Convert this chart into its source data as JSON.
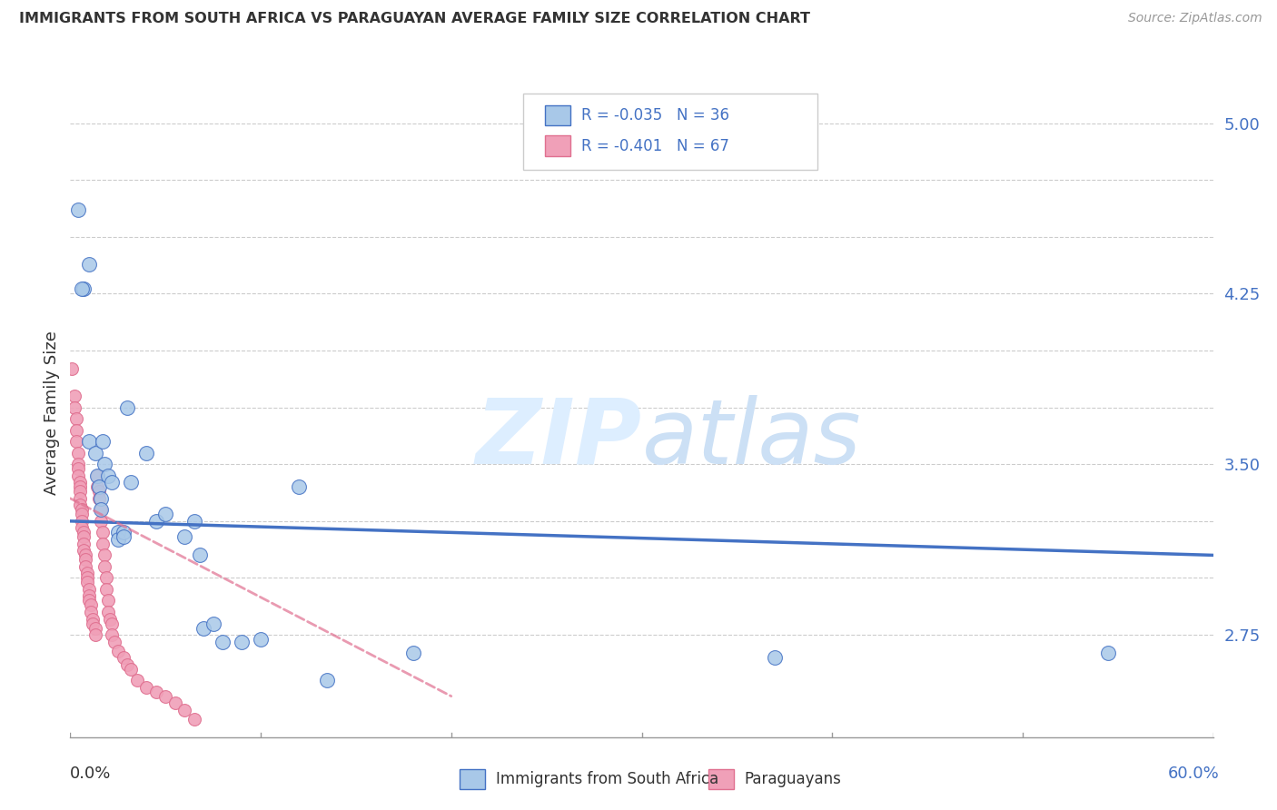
{
  "title": "IMMIGRANTS FROM SOUTH AFRICA VS PARAGUAYAN AVERAGE FAMILY SIZE CORRELATION CHART",
  "source": "Source: ZipAtlas.com",
  "ylabel": "Average Family Size",
  "yticks": [
    2.75,
    3.0,
    3.25,
    3.5,
    3.75,
    4.0,
    4.25,
    4.5,
    4.75,
    5.0
  ],
  "ytick_labels_shown": [
    2.75,
    3.5,
    4.25,
    5.0
  ],
  "xlim": [
    0.0,
    0.6
  ],
  "ylim": [
    2.3,
    5.15
  ],
  "legend_r1": "-0.035",
  "legend_n1": "36",
  "legend_r2": "-0.401",
  "legend_n2": "67",
  "color_blue": "#a8c8e8",
  "color_pink": "#f0a0b8",
  "color_line_blue": "#4472c4",
  "color_text_blue": "#4472c4",
  "blue_points": [
    [
      0.004,
      4.62
    ],
    [
      0.007,
      4.27
    ],
    [
      0.01,
      4.38
    ],
    [
      0.006,
      4.27
    ],
    [
      0.01,
      3.6
    ],
    [
      0.013,
      3.55
    ],
    [
      0.014,
      3.45
    ],
    [
      0.015,
      3.4
    ],
    [
      0.016,
      3.35
    ],
    [
      0.016,
      3.3
    ],
    [
      0.017,
      3.6
    ],
    [
      0.018,
      3.5
    ],
    [
      0.02,
      3.45
    ],
    [
      0.022,
      3.42
    ],
    [
      0.025,
      3.2
    ],
    [
      0.025,
      3.17
    ],
    [
      0.028,
      3.2
    ],
    [
      0.028,
      3.18
    ],
    [
      0.03,
      3.75
    ],
    [
      0.032,
      3.42
    ],
    [
      0.04,
      3.55
    ],
    [
      0.045,
      3.25
    ],
    [
      0.05,
      3.28
    ],
    [
      0.06,
      3.18
    ],
    [
      0.065,
      3.25
    ],
    [
      0.068,
      3.1
    ],
    [
      0.07,
      2.78
    ],
    [
      0.075,
      2.8
    ],
    [
      0.08,
      2.72
    ],
    [
      0.09,
      2.72
    ],
    [
      0.1,
      2.73
    ],
    [
      0.12,
      3.4
    ],
    [
      0.135,
      2.55
    ],
    [
      0.18,
      2.67
    ],
    [
      0.37,
      2.65
    ],
    [
      0.545,
      2.67
    ]
  ],
  "pink_points": [
    [
      0.001,
      3.92
    ],
    [
      0.002,
      3.8
    ],
    [
      0.002,
      3.75
    ],
    [
      0.003,
      3.7
    ],
    [
      0.003,
      3.65
    ],
    [
      0.003,
      3.6
    ],
    [
      0.004,
      3.55
    ],
    [
      0.004,
      3.5
    ],
    [
      0.004,
      3.48
    ],
    [
      0.004,
      3.45
    ],
    [
      0.005,
      3.42
    ],
    [
      0.005,
      3.4
    ],
    [
      0.005,
      3.38
    ],
    [
      0.005,
      3.35
    ],
    [
      0.005,
      3.32
    ],
    [
      0.006,
      3.3
    ],
    [
      0.006,
      3.28
    ],
    [
      0.006,
      3.25
    ],
    [
      0.006,
      3.22
    ],
    [
      0.007,
      3.2
    ],
    [
      0.007,
      3.18
    ],
    [
      0.007,
      3.15
    ],
    [
      0.007,
      3.12
    ],
    [
      0.008,
      3.1
    ],
    [
      0.008,
      3.08
    ],
    [
      0.008,
      3.05
    ],
    [
      0.009,
      3.02
    ],
    [
      0.009,
      3.0
    ],
    [
      0.009,
      2.98
    ],
    [
      0.01,
      2.95
    ],
    [
      0.01,
      2.92
    ],
    [
      0.01,
      2.9
    ],
    [
      0.011,
      2.88
    ],
    [
      0.011,
      2.85
    ],
    [
      0.012,
      2.82
    ],
    [
      0.012,
      2.8
    ],
    [
      0.013,
      2.78
    ],
    [
      0.013,
      2.75
    ],
    [
      0.014,
      3.45
    ],
    [
      0.014,
      3.4
    ],
    [
      0.015,
      3.38
    ],
    [
      0.015,
      3.35
    ],
    [
      0.016,
      3.3
    ],
    [
      0.016,
      3.25
    ],
    [
      0.017,
      3.2
    ],
    [
      0.017,
      3.15
    ],
    [
      0.018,
      3.1
    ],
    [
      0.018,
      3.05
    ],
    [
      0.019,
      3.0
    ],
    [
      0.019,
      2.95
    ],
    [
      0.02,
      2.9
    ],
    [
      0.02,
      2.85
    ],
    [
      0.021,
      2.82
    ],
    [
      0.022,
      2.8
    ],
    [
      0.022,
      2.75
    ],
    [
      0.023,
      2.72
    ],
    [
      0.025,
      2.68
    ],
    [
      0.028,
      2.65
    ],
    [
      0.03,
      2.62
    ],
    [
      0.032,
      2.6
    ],
    [
      0.035,
      2.55
    ],
    [
      0.04,
      2.52
    ],
    [
      0.045,
      2.5
    ],
    [
      0.05,
      2.48
    ],
    [
      0.055,
      2.45
    ],
    [
      0.06,
      2.42
    ],
    [
      0.065,
      2.38
    ]
  ],
  "blue_trend_x": [
    0.0,
    0.6
  ],
  "blue_trend_y": [
    3.25,
    3.1
  ],
  "pink_trend_x": [
    0.0,
    0.2
  ],
  "pink_trend_y": [
    3.35,
    2.48
  ]
}
